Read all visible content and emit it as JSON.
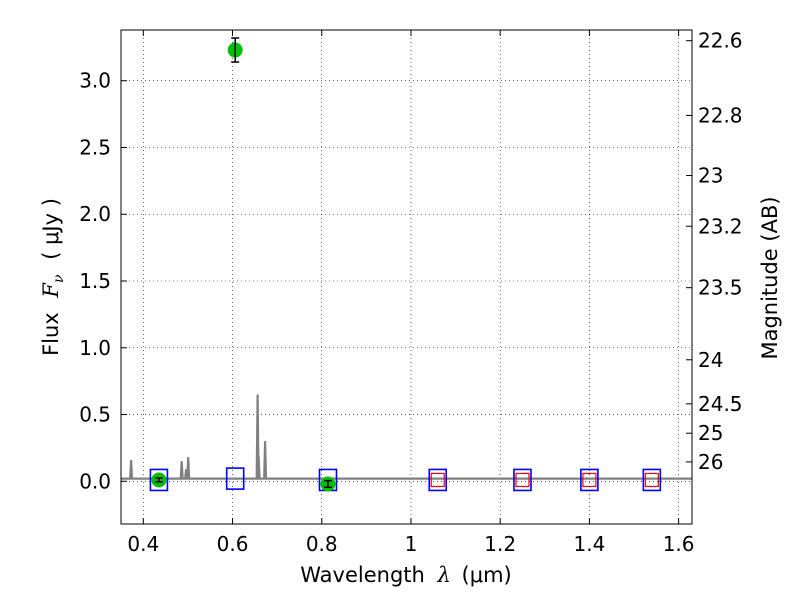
{
  "chart_data": {
    "type": "scatter",
    "xlabel_prefix": "Wavelength",
    "xlabel_symbol": "λ",
    "xlabel_unit": "(μm)",
    "ylabel_prefix": "Flux",
    "ylabel_symbol": "F",
    "ylabel_subscript": "ν",
    "ylabel_unit": "( μJy )",
    "ylabel_right": "Magnitude (AB)",
    "xlim": [
      0.35,
      1.63
    ],
    "ylim": [
      -0.32,
      3.38
    ],
    "xticks": [
      0.4,
      0.6,
      0.8,
      1.0,
      1.2,
      1.4,
      1.6
    ],
    "xtick_labels": [
      "0.4",
      "0.6",
      "0.8",
      "1",
      "1.2",
      "1.4",
      "1.6"
    ],
    "yticks": [
      0.0,
      0.5,
      1.0,
      1.5,
      2.0,
      2.5,
      3.0
    ],
    "ytick_labels": [
      "0.0",
      "0.5",
      "1.0",
      "1.5",
      "2.0",
      "2.5",
      "3.0"
    ],
    "mag_ticks": [
      {
        "label": "22.6",
        "flux": 3.3
      },
      {
        "label": "22.8",
        "flux": 2.74
      },
      {
        "label": "23",
        "flux": 2.29
      },
      {
        "label": "23.2",
        "flux": 1.91
      },
      {
        "label": "23.5",
        "flux": 1.45
      },
      {
        "label": "24",
        "flux": 0.91
      },
      {
        "label": "24.5",
        "flux": 0.58
      },
      {
        "label": "25",
        "flux": 0.36
      },
      {
        "label": "26",
        "flux": 0.145
      }
    ],
    "grid": true,
    "colors": {
      "detection": "#00c000",
      "model_box": "#0000ff",
      "observed_box": "#ff0000",
      "spectrum": "#808080"
    },
    "detections": [
      {
        "x": 0.435,
        "y": 0.01,
        "yerr": 0.015
      },
      {
        "x": 0.606,
        "y": 3.23,
        "yerr": 0.09
      },
      {
        "x": 0.814,
        "y": -0.02,
        "yerr": 0.025
      }
    ],
    "model_photometry": [
      {
        "x": 0.435,
        "y": 0.01
      },
      {
        "x": 0.606,
        "y": 0.02
      },
      {
        "x": 0.814,
        "y": 0.01
      },
      {
        "x": 1.06,
        "y": 0.01
      },
      {
        "x": 1.25,
        "y": 0.01
      },
      {
        "x": 1.4,
        "y": 0.01
      },
      {
        "x": 1.54,
        "y": 0.01
      }
    ],
    "observed_upper": [
      {
        "x": 1.06,
        "y": 0.01
      },
      {
        "x": 1.25,
        "y": 0.01
      },
      {
        "x": 1.4,
        "y": 0.01
      },
      {
        "x": 1.54,
        "y": 0.01
      }
    ],
    "spectrum": {
      "baseline": 0.02,
      "lines": [
        {
          "x": 0.3727,
          "peak": 0.16
        },
        {
          "x": 0.4861,
          "peak": 0.15
        },
        {
          "x": 0.4959,
          "peak": 0.09
        },
        {
          "x": 0.5007,
          "peak": 0.18
        },
        {
          "x": 0.6563,
          "peak": 0.65
        },
        {
          "x": 0.6584,
          "peak": 0.19
        },
        {
          "x": 0.6731,
          "peak": 0.3
        }
      ]
    }
  }
}
